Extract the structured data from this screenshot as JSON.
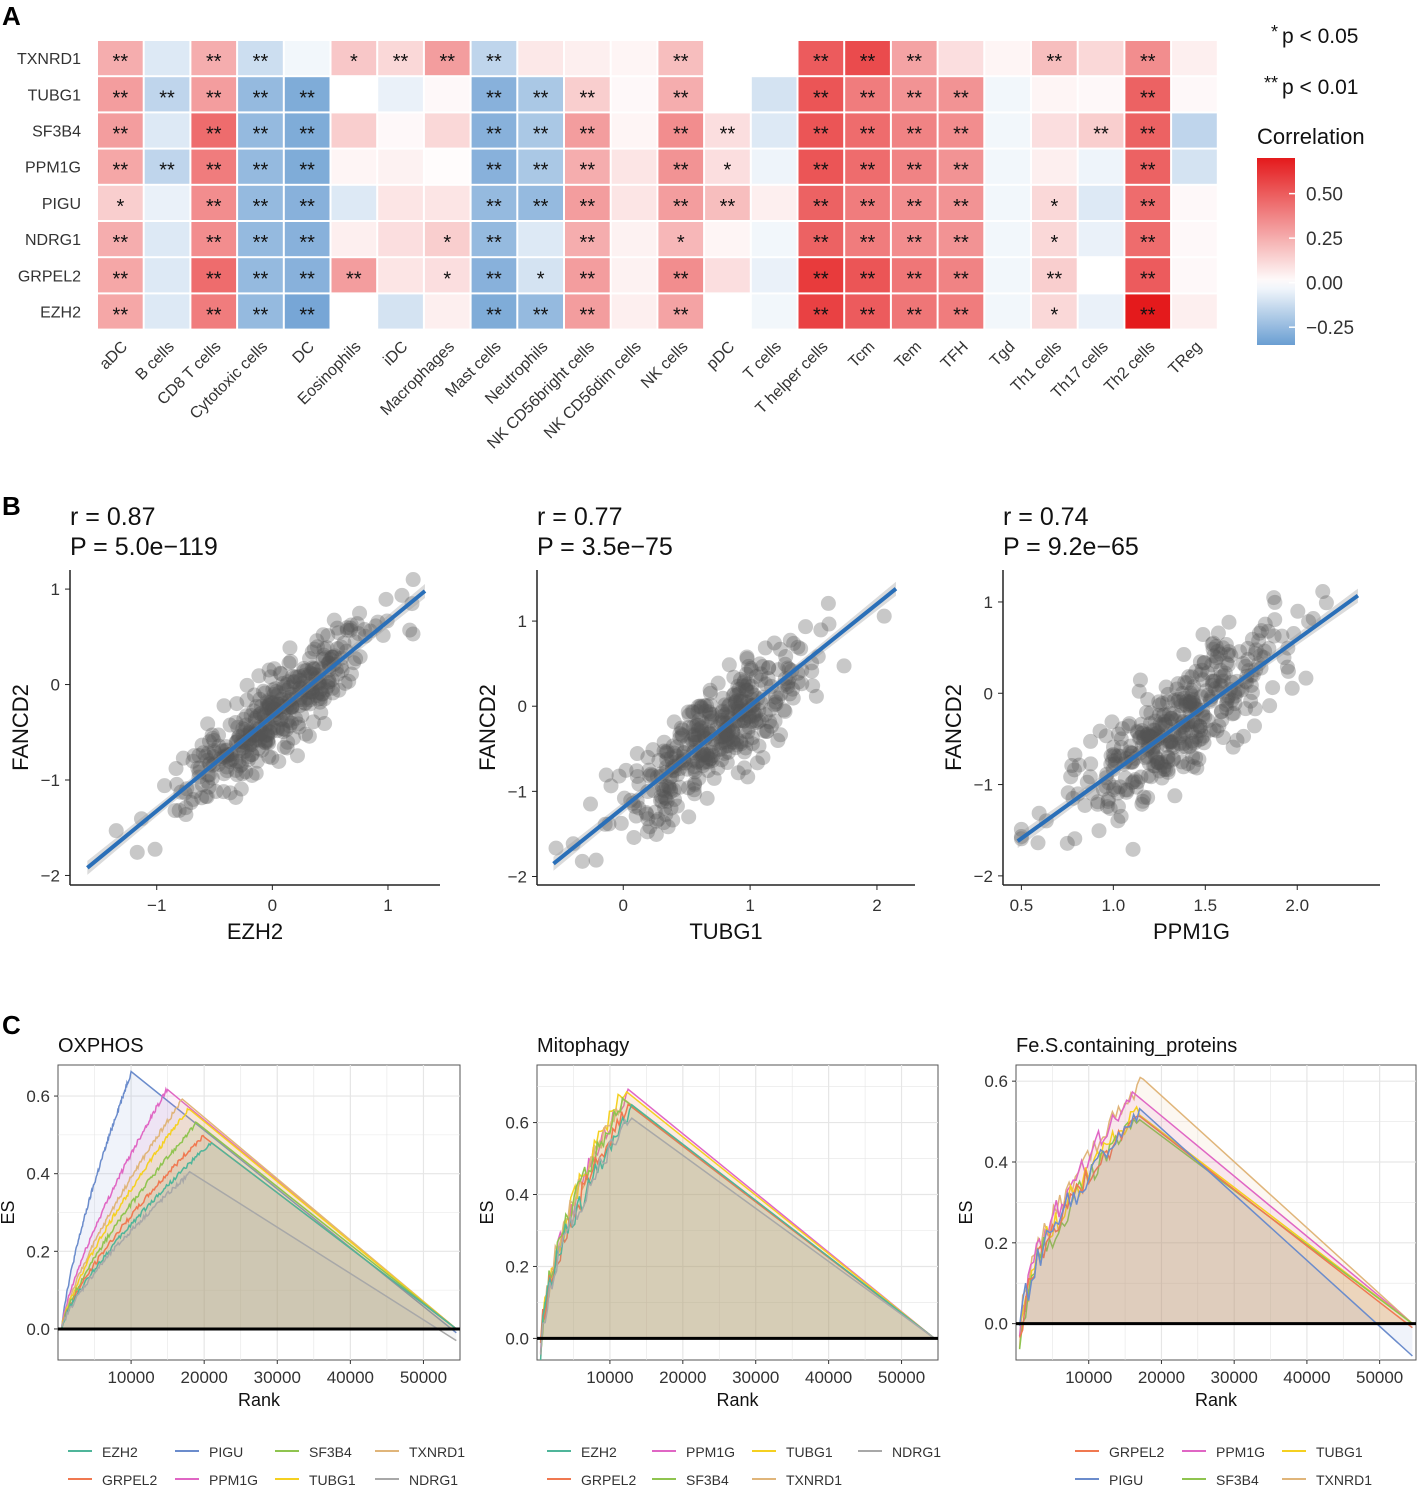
{
  "panel_labels": [
    "A",
    "B",
    "C"
  ],
  "chart_data": [
    {
      "type": "heatmap",
      "id": "A",
      "rows": [
        "TXNRD1",
        "TUBG1",
        "SF3B4",
        "PPM1G",
        "PIGU",
        "NDRG1",
        "GRPEL2",
        "EZH2"
      ],
      "columns": [
        "aDC",
        "B cells",
        "CD8 T cells",
        "Cytotoxic cells",
        "DC",
        "Eosinophils",
        "iDC",
        "Macrophages",
        "Mast cells",
        "Neutrophils",
        "NK CD56bright cells",
        "NK CD56dim cells",
        "NK cells",
        "pDC",
        "T cells",
        "T helper cells",
        "Tcm",
        "Tem",
        "TFH",
        "Tgd",
        "Th1 cells",
        "Th17 cells",
        "Th2 cells",
        "TReg"
      ],
      "values": [
        [
          0.25,
          -0.08,
          0.25,
          -0.12,
          -0.03,
          0.17,
          0.12,
          0.3,
          -0.15,
          0.07,
          0.05,
          0.03,
          0.2,
          0.0,
          0.0,
          0.5,
          0.55,
          0.28,
          0.1,
          0.03,
          0.2,
          0.12,
          0.35,
          0.05
        ],
        [
          0.3,
          -0.15,
          0.3,
          -0.25,
          -0.3,
          0.0,
          -0.05,
          0.02,
          -0.28,
          -0.2,
          0.15,
          0.02,
          0.25,
          0.0,
          -0.1,
          0.52,
          0.4,
          0.33,
          0.33,
          -0.03,
          0.03,
          0.02,
          0.48,
          0.02
        ],
        [
          0.3,
          -0.08,
          0.45,
          -0.25,
          -0.3,
          0.15,
          0.02,
          0.12,
          -0.28,
          -0.2,
          0.3,
          0.03,
          0.35,
          0.1,
          -0.08,
          0.52,
          0.45,
          0.38,
          0.35,
          -0.03,
          0.1,
          0.15,
          0.48,
          -0.15
        ],
        [
          0.27,
          -0.15,
          0.4,
          -0.25,
          -0.3,
          0.03,
          0.04,
          0.01,
          -0.28,
          -0.2,
          0.25,
          0.08,
          0.33,
          0.1,
          -0.04,
          0.52,
          0.45,
          0.38,
          0.33,
          -0.03,
          0.05,
          -0.04,
          0.48,
          -0.1
        ],
        [
          0.15,
          -0.05,
          0.35,
          -0.25,
          -0.28,
          -0.08,
          0.08,
          0.08,
          -0.25,
          -0.25,
          0.3,
          0.08,
          0.3,
          0.2,
          0.05,
          0.48,
          0.4,
          0.35,
          0.33,
          -0.03,
          0.12,
          -0.08,
          0.45,
          0.02
        ],
        [
          0.25,
          -0.08,
          0.35,
          -0.25,
          -0.28,
          0.05,
          0.1,
          0.15,
          -0.25,
          -0.08,
          0.25,
          0.04,
          0.22,
          0.03,
          -0.03,
          0.48,
          0.4,
          0.35,
          0.33,
          -0.03,
          0.12,
          -0.05,
          0.45,
          0.02
        ],
        [
          0.27,
          -0.08,
          0.45,
          -0.25,
          -0.28,
          0.3,
          0.08,
          0.1,
          -0.28,
          -0.1,
          0.3,
          0.04,
          0.35,
          0.1,
          -0.05,
          0.6,
          0.52,
          0.42,
          0.38,
          -0.03,
          0.15,
          0.0,
          0.5,
          0.02
        ],
        [
          0.27,
          -0.08,
          0.4,
          -0.25,
          -0.32,
          0.0,
          -0.1,
          0.05,
          -0.3,
          -0.25,
          0.3,
          0.05,
          0.28,
          0.0,
          -0.03,
          0.58,
          0.5,
          0.42,
          0.4,
          -0.03,
          0.12,
          -0.05,
          0.7,
          0.05
        ]
      ],
      "stars": [
        [
          "**",
          "",
          "**",
          "**",
          "",
          "*",
          "**",
          "**",
          "**",
          "",
          "",
          "",
          "**",
          "",
          "",
          "**",
          "**",
          "**",
          "",
          "",
          "**",
          "",
          "**",
          ""
        ],
        [
          "**",
          "**",
          "**",
          "**",
          "**",
          "",
          "",
          "",
          "**",
          "**",
          "**",
          "",
          "**",
          "",
          "",
          "**",
          "**",
          "**",
          "**",
          "",
          "",
          "",
          "**",
          ""
        ],
        [
          "**",
          "",
          "**",
          "**",
          "**",
          "",
          "",
          "",
          "**",
          "**",
          "**",
          "",
          "**",
          "**",
          "",
          "**",
          "**",
          "**",
          "**",
          "",
          "",
          "**",
          "**",
          ""
        ],
        [
          "**",
          "**",
          "**",
          "**",
          "**",
          "",
          "",
          "",
          "**",
          "**",
          "**",
          "",
          "**",
          "*",
          "",
          "**",
          "**",
          "**",
          "**",
          "",
          "",
          "",
          "**",
          ""
        ],
        [
          "*",
          "",
          "**",
          "**",
          "**",
          "",
          "",
          "",
          "**",
          "**",
          "**",
          "",
          "**",
          "**",
          "",
          "**",
          "**",
          "**",
          "**",
          "",
          "*",
          "",
          "**",
          ""
        ],
        [
          "**",
          "",
          "**",
          "**",
          "**",
          "",
          "",
          "*",
          "**",
          "",
          "**",
          "",
          "*",
          "",
          "",
          "**",
          "**",
          "**",
          "**",
          "",
          "*",
          "",
          "**",
          ""
        ],
        [
          "**",
          "",
          "**",
          "**",
          "**",
          "**",
          "",
          "*",
          "**",
          "*",
          "**",
          "",
          "**",
          "",
          "",
          "**",
          "**",
          "**",
          "**",
          "",
          "**",
          "",
          "**",
          ""
        ],
        [
          "**",
          "",
          "**",
          "**",
          "**",
          "",
          "",
          "",
          "**",
          "**",
          "**",
          "",
          "**",
          "",
          "",
          "**",
          "**",
          "**",
          "**",
          "",
          "*",
          "",
          "**",
          ""
        ]
      ],
      "legend": {
        "sig_stars": [
          "*",
          "**"
        ],
        "sig_labels": [
          "p < 0.05",
          "p < 0.01"
        ],
        "colorbar_title": "Correlation",
        "colorbar_ticks": [
          0.5,
          0.25,
          0.0,
          -0.25
        ],
        "colorbar_tick_labels": [
          "0.50",
          "0.25",
          "0.00",
          "−0.25"
        ],
        "range": [
          -0.35,
          0.7
        ]
      },
      "colors": {
        "low": "#6a9ed2",
        "mid": "#ffffff",
        "high": "#e41a1c"
      }
    },
    {
      "type": "scatter",
      "id": "B1",
      "stat_r": "r = 0.87",
      "stat_p": "P = 5.0e−119",
      "xlabel": "EZH2",
      "ylabel": "FANCD2",
      "xlim": [
        -1.75,
        1.45
      ],
      "ylim": [
        -2.1,
        1.2
      ],
      "xticks": [
        -1,
        0,
        1
      ],
      "xtick_labels": [
        "−1",
        "0",
        "1"
      ],
      "yticks": [
        -2,
        -1,
        0,
        1
      ],
      "ytick_labels": [
        "−2",
        "−1",
        "0",
        "1"
      ],
      "fit": [
        [
          -1.6,
          -1.92
        ],
        [
          1.32,
          0.98
        ]
      ],
      "n_points": 400,
      "x_center": 0.0,
      "x_spread": 0.42,
      "noise": 0.23,
      "seed": 11,
      "color_points": "#555555",
      "color_line": "#2a6fb8"
    },
    {
      "type": "scatter",
      "id": "B2",
      "stat_r": "r = 0.77",
      "stat_p": "P = 3.5e−75",
      "xlabel": "TUBG1",
      "ylabel": "FANCD2",
      "xlim": [
        -0.68,
        2.3
      ],
      "ylim": [
        -2.1,
        1.6
      ],
      "xticks": [
        0,
        1,
        2
      ],
      "xtick_labels": [
        "0",
        "1",
        "2"
      ],
      "yticks": [
        -2,
        -1,
        0,
        1
      ],
      "ytick_labels": [
        "−2",
        "−1",
        "0",
        "1"
      ],
      "fit": [
        [
          -0.55,
          -1.85
        ],
        [
          2.15,
          1.38
        ]
      ],
      "n_points": 400,
      "x_center": 0.7,
      "x_spread": 0.38,
      "noise": 0.3,
      "seed": 23,
      "color_points": "#555555",
      "color_line": "#2a6fb8"
    },
    {
      "type": "scatter",
      "id": "B3",
      "stat_r": "r = 0.74",
      "stat_p": "P = 9.2e−65",
      "xlabel": "PPM1G",
      "ylabel": "FANCD2",
      "xlim": [
        0.4,
        2.45
      ],
      "ylim": [
        -2.1,
        1.35
      ],
      "xticks": [
        0.5,
        1.0,
        1.5,
        2.0
      ],
      "xtick_labels": [
        "0.5",
        "1.0",
        "1.5",
        "2.0"
      ],
      "yticks": [
        -2,
        -1,
        0,
        1
      ],
      "ytick_labels": [
        "−2",
        "−1",
        "0",
        "1"
      ],
      "fit": [
        [
          0.48,
          -1.62
        ],
        [
          2.33,
          1.07
        ]
      ],
      "n_points": 400,
      "x_center": 1.35,
      "x_spread": 0.3,
      "noise": 0.32,
      "seed": 37,
      "color_points": "#555555",
      "color_line": "#2a6fb8"
    },
    {
      "type": "area",
      "id": "C1",
      "title": "OXPHOS",
      "xlabel": "Rank",
      "ylabel": "ES",
      "xlim": [
        0,
        55000
      ],
      "ylim": [
        -0.08,
        0.68
      ],
      "xticks": [
        10000,
        20000,
        30000,
        40000,
        50000
      ],
      "xtick_labels": [
        "10000",
        "20000",
        "30000",
        "40000",
        "50000"
      ],
      "yticks": [
        0,
        0.2,
        0.4,
        0.6
      ],
      "ytick_labels": [
        "0.0",
        "0.2",
        "0.4",
        "0.6"
      ],
      "series": [
        {
          "name": "PIGU",
          "color": "#6b8ccc",
          "peak_x": 10000,
          "peak_y": 0.66,
          "end_y": -0.01
        },
        {
          "name": "PPM1G",
          "color": "#e066c4",
          "peak_x": 15000,
          "peak_y": 0.62,
          "end_y": 0.0
        },
        {
          "name": "TXNRD1",
          "color": "#e0b57a",
          "peak_x": 17000,
          "peak_y": 0.59,
          "end_y": 0.0
        },
        {
          "name": "TUBG1",
          "color": "#f5d020",
          "peak_x": 18000,
          "peak_y": 0.57,
          "end_y": 0.0
        },
        {
          "name": "SF3B4",
          "color": "#8fc44f",
          "peak_x": 19000,
          "peak_y": 0.53,
          "end_y": 0.0
        },
        {
          "name": "GRPEL2",
          "color": "#f07850",
          "peak_x": 20000,
          "peak_y": 0.5,
          "end_y": 0.0
        },
        {
          "name": "EZH2",
          "color": "#4fb59a",
          "peak_x": 21000,
          "peak_y": 0.48,
          "end_y": 0.0
        },
        {
          "name": "NDRG1",
          "color": "#a8a8a8",
          "peak_x": 18000,
          "peak_y": 0.4,
          "end_y": -0.03
        }
      ],
      "jagged": false,
      "legend_labels": [
        "EZH2",
        "PIGU",
        "SF3B4",
        "TXNRD1",
        "GRPEL2",
        "PPM1G",
        "TUBG1",
        "NDRG1"
      ],
      "legend_colors": [
        "#4fb59a",
        "#6b8ccc",
        "#8fc44f",
        "#e0b57a",
        "#f07850",
        "#e066c4",
        "#f5d020",
        "#a8a8a8"
      ]
    },
    {
      "type": "area",
      "id": "C2",
      "title": "Mitophagy",
      "xlabel": "Rank",
      "ylabel": "ES",
      "xlim": [
        0,
        55000
      ],
      "ylim": [
        -0.06,
        0.76
      ],
      "xticks": [
        10000,
        20000,
        30000,
        40000,
        50000
      ],
      "xtick_labels": [
        "10000",
        "20000",
        "30000",
        "40000",
        "50000"
      ],
      "yticks": [
        0,
        0.2,
        0.4,
        0.6
      ],
      "ytick_labels": [
        "0.0",
        "0.2",
        "0.4",
        "0.6"
      ],
      "series": [
        {
          "name": "PPM1G",
          "color": "#e066c4",
          "peak_x": 12500,
          "peak_y": 0.7,
          "end_y": 0.0
        },
        {
          "name": "TUBG1",
          "color": "#f5d020",
          "peak_x": 12300,
          "peak_y": 0.72,
          "end_y": 0.0
        },
        {
          "name": "TXNRD1",
          "color": "#e0b57a",
          "peak_x": 12000,
          "peak_y": 0.69,
          "end_y": 0.0
        },
        {
          "name": "SF3B4",
          "color": "#8fc44f",
          "peak_x": 12000,
          "peak_y": 0.68,
          "end_y": 0.0
        },
        {
          "name": "GRPEL2",
          "color": "#f07850",
          "peak_x": 12500,
          "peak_y": 0.66,
          "end_y": 0.0
        },
        {
          "name": "EZH2",
          "color": "#4fb59a",
          "peak_x": 13000,
          "peak_y": 0.65,
          "end_y": 0.0
        },
        {
          "name": "NDRG1",
          "color": "#a8a8a8",
          "peak_x": 13000,
          "peak_y": 0.64,
          "end_y": 0.0
        }
      ],
      "jagged": true,
      "legend_labels": [
        "EZH2",
        "PPM1G",
        "TUBG1",
        "NDRG1",
        "GRPEL2",
        "SF3B4",
        "TXNRD1"
      ],
      "legend_colors": [
        "#4fb59a",
        "#e066c4",
        "#f5d020",
        "#a8a8a8",
        "#f07850",
        "#8fc44f",
        "#e0b57a"
      ]
    },
    {
      "type": "area",
      "id": "C3",
      "title": "Fe.S.containing_proteins",
      "xlabel": "Rank",
      "ylabel": "ES",
      "xlim": [
        0,
        55000
      ],
      "ylim": [
        -0.09,
        0.64
      ],
      "xticks": [
        10000,
        20000,
        30000,
        40000,
        50000
      ],
      "xtick_labels": [
        "10000",
        "20000",
        "30000",
        "40000",
        "50000"
      ],
      "yticks": [
        0,
        0.2,
        0.4,
        0.6
      ],
      "ytick_labels": [
        "0.0",
        "0.2",
        "0.4",
        "0.6"
      ],
      "series": [
        {
          "name": "TXNRD1",
          "color": "#e0b57a",
          "peak_x": 17500,
          "peak_y": 0.62,
          "end_y": 0.0
        },
        {
          "name": "PPM1G",
          "color": "#e066c4",
          "peak_x": 16000,
          "peak_y": 0.58,
          "end_y": 0.0
        },
        {
          "name": "TUBG1",
          "color": "#f5d020",
          "peak_x": 17000,
          "peak_y": 0.55,
          "end_y": 0.0
        },
        {
          "name": "SF3B4",
          "color": "#8fc44f",
          "peak_x": 17000,
          "peak_y": 0.53,
          "end_y": 0.0
        },
        {
          "name": "GRPEL2",
          "color": "#f07850",
          "peak_x": 17000,
          "peak_y": 0.53,
          "end_y": -0.01
        },
        {
          "name": "PIGU",
          "color": "#6b8ccc",
          "peak_x": 17000,
          "peak_y": 0.54,
          "end_y": -0.08
        }
      ],
      "jagged": true,
      "legend_labels": [
        "GRPEL2",
        "PPM1G",
        "TUBG1",
        "PIGU",
        "SF3B4",
        "TXNRD1"
      ],
      "legend_colors": [
        "#f07850",
        "#e066c4",
        "#f5d020",
        "#6b8ccc",
        "#8fc44f",
        "#e0b57a"
      ]
    }
  ]
}
